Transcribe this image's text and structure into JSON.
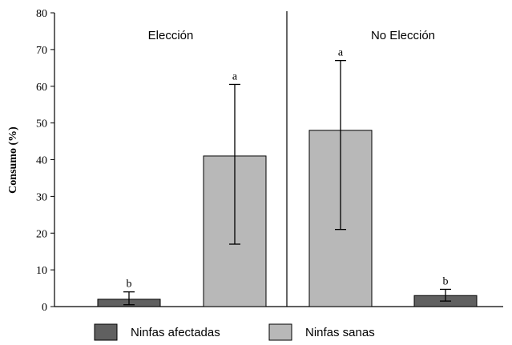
{
  "chart_data": {
    "type": "bar",
    "ylabel": "Consumo (%)",
    "xlabel": "",
    "ylim": [
      0,
      80
    ],
    "yticks": [
      0,
      10,
      20,
      30,
      40,
      50,
      60,
      70,
      80
    ],
    "grid": false,
    "legend_position": "bottom",
    "panels": [
      {
        "label": "Elección",
        "bars": [
          {
            "series": "Ninfas afectadas",
            "value": 2,
            "err_low": 0.5,
            "err_high": 4,
            "letter": "b"
          },
          {
            "series": "Ninfas sanas",
            "value": 41,
            "err_low": 17,
            "err_high": 60.5,
            "letter": "a"
          }
        ]
      },
      {
        "label": "No Elección",
        "bars": [
          {
            "series": "Ninfas sanas",
            "value": 48,
            "err_low": 21,
            "err_high": 67,
            "letter": "a"
          },
          {
            "series": "Ninfas afectadas",
            "value": 3,
            "err_low": 1.5,
            "err_high": 4.7,
            "letter": "b"
          }
        ]
      }
    ],
    "series": [
      {
        "name": "Ninfas afectadas",
        "color": "#606060"
      },
      {
        "name": "Ninfas sanas",
        "color": "#b8b8b8"
      }
    ]
  }
}
